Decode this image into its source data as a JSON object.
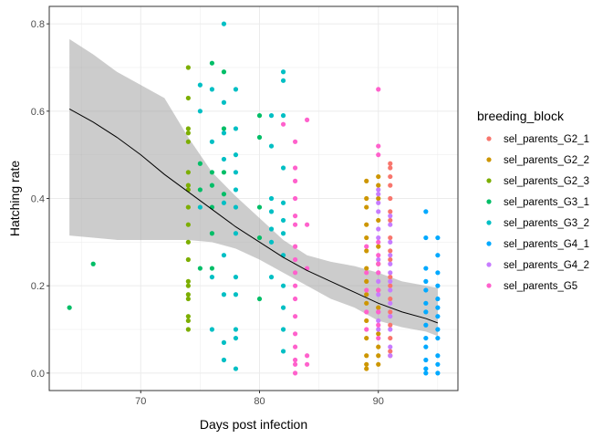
{
  "chart_data": {
    "type": "scatter",
    "xlabel": "Days post infection",
    "ylabel": "Hatching rate",
    "xlim": [
      62.3,
      96.7
    ],
    "ylim": [
      -0.04,
      0.84
    ],
    "x_ticks": [
      70,
      80,
      90
    ],
    "y_ticks": [
      0.0,
      0.2,
      0.4,
      0.6,
      0.8
    ],
    "grid": true,
    "legend_title": "breeding_block",
    "legend_position": "right",
    "series": [
      {
        "name": "sel_parents_G2_1",
        "color": "#F8766D",
        "points": [
          [
            91,
            0.48
          ],
          [
            91,
            0.47
          ],
          [
            91,
            0.45
          ],
          [
            91,
            0.43
          ],
          [
            91,
            0.4
          ],
          [
            91,
            0.37
          ],
          [
            91,
            0.35
          ],
          [
            91,
            0.31
          ],
          [
            91,
            0.28
          ],
          [
            91,
            0.26
          ],
          [
            91,
            0.22
          ],
          [
            91,
            0.2
          ],
          [
            91,
            0.17
          ],
          [
            91,
            0.14
          ],
          [
            91,
            0.11
          ],
          [
            91,
            0.08
          ],
          [
            91,
            0.05
          ],
          [
            91,
            0.04
          ]
        ]
      },
      {
        "name": "sel_parents_G2_2",
        "color": "#CD9600",
        "points": [
          [
            89,
            0.44
          ],
          [
            89,
            0.4
          ],
          [
            89,
            0.38
          ],
          [
            89,
            0.34
          ],
          [
            89,
            0.31
          ],
          [
            89,
            0.28
          ],
          [
            89,
            0.24
          ],
          [
            89,
            0.21
          ],
          [
            89,
            0.18
          ],
          [
            89,
            0.16
          ],
          [
            89,
            0.12
          ],
          [
            89,
            0.08
          ],
          [
            89,
            0.04
          ],
          [
            89,
            0.02
          ],
          [
            89,
            0.01
          ],
          [
            90,
            0.45
          ],
          [
            90,
            0.43
          ],
          [
            90,
            0.4
          ],
          [
            90,
            0.35
          ],
          [
            90,
            0.29
          ],
          [
            90,
            0.25
          ],
          [
            90,
            0.19
          ],
          [
            90,
            0.15
          ],
          [
            90,
            0.09
          ],
          [
            90,
            0.06
          ],
          [
            90,
            0.04
          ],
          [
            90,
            0.02
          ]
        ]
      },
      {
        "name": "sel_parents_G2_3",
        "color": "#7CAE00",
        "points": [
          [
            74,
            0.7
          ],
          [
            74,
            0.63
          ],
          [
            74,
            0.56
          ],
          [
            74,
            0.55
          ],
          [
            74,
            0.53
          ],
          [
            74,
            0.46
          ],
          [
            74,
            0.43
          ],
          [
            74,
            0.42
          ],
          [
            74,
            0.38
          ],
          [
            74,
            0.34
          ],
          [
            74,
            0.3
          ],
          [
            74,
            0.26
          ],
          [
            74,
            0.21
          ],
          [
            74,
            0.2
          ],
          [
            74,
            0.18
          ],
          [
            74,
            0.17
          ],
          [
            74,
            0.13
          ],
          [
            74,
            0.12
          ],
          [
            74,
            0.1
          ]
        ]
      },
      {
        "name": "sel_parents_G3_1",
        "color": "#00BE67",
        "points": [
          [
            64,
            0.15
          ],
          [
            66,
            0.25
          ],
          [
            75,
            0.48
          ],
          [
            75,
            0.42
          ],
          [
            75,
            0.24
          ],
          [
            76,
            0.71
          ],
          [
            76,
            0.46
          ],
          [
            76,
            0.43
          ],
          [
            76,
            0.38
          ],
          [
            76,
            0.32
          ],
          [
            76,
            0.24
          ],
          [
            77,
            0.69
          ],
          [
            77,
            0.56
          ],
          [
            77,
            0.46
          ],
          [
            77,
            0.41
          ],
          [
            80,
            0.59
          ],
          [
            80,
            0.54
          ],
          [
            80,
            0.38
          ],
          [
            80,
            0.31
          ],
          [
            80,
            0.17
          ]
        ]
      },
      {
        "name": "sel_parents_G3_2",
        "color": "#00BFC4",
        "points": [
          [
            75,
            0.66
          ],
          [
            75,
            0.6
          ],
          [
            75,
            0.38
          ],
          [
            76,
            0.65
          ],
          [
            76,
            0.53
          ],
          [
            76,
            0.22
          ],
          [
            76,
            0.1
          ],
          [
            77,
            0.8
          ],
          [
            77,
            0.62
          ],
          [
            77,
            0.55
          ],
          [
            77,
            0.49
          ],
          [
            77,
            0.39
          ],
          [
            77,
            0.27
          ],
          [
            77,
            0.18
          ],
          [
            77,
            0.07
          ],
          [
            77,
            0.03
          ],
          [
            78,
            0.65
          ],
          [
            78,
            0.56
          ],
          [
            78,
            0.5
          ],
          [
            78,
            0.46
          ],
          [
            78,
            0.42
          ],
          [
            78,
            0.38
          ],
          [
            78,
            0.32
          ],
          [
            78,
            0.22
          ],
          [
            78,
            0.18
          ],
          [
            78,
            0.1
          ],
          [
            78,
            0.08
          ],
          [
            78,
            0.01
          ],
          [
            81,
            0.59
          ],
          [
            81,
            0.52
          ],
          [
            81,
            0.4
          ],
          [
            81,
            0.37
          ],
          [
            81,
            0.33
          ],
          [
            81,
            0.3
          ],
          [
            81,
            0.22
          ],
          [
            82,
            0.69
          ],
          [
            82,
            0.67
          ],
          [
            82,
            0.59
          ],
          [
            82,
            0.47
          ],
          [
            82,
            0.39
          ],
          [
            82,
            0.35
          ],
          [
            82,
            0.32
          ],
          [
            82,
            0.27
          ],
          [
            82,
            0.2
          ],
          [
            82,
            0.15
          ],
          [
            82,
            0.1
          ],
          [
            82,
            0.05
          ]
        ]
      },
      {
        "name": "sel_parents_G4_1",
        "color": "#00A9FF",
        "points": [
          [
            94,
            0.37
          ],
          [
            94,
            0.31
          ],
          [
            94,
            0.24
          ],
          [
            94,
            0.21
          ],
          [
            94,
            0.19
          ],
          [
            94,
            0.16
          ],
          [
            94,
            0.14
          ],
          [
            94,
            0.11
          ],
          [
            94,
            0.08
          ],
          [
            94,
            0.06
          ],
          [
            94,
            0.03
          ],
          [
            94,
            0.01
          ],
          [
            94,
            0.0
          ],
          [
            95,
            0.31
          ],
          [
            95,
            0.27
          ],
          [
            95,
            0.23
          ],
          [
            95,
            0.2
          ],
          [
            95,
            0.17
          ],
          [
            95,
            0.15
          ],
          [
            95,
            0.13
          ],
          [
            95,
            0.1
          ],
          [
            95,
            0.08
          ],
          [
            95,
            0.04
          ],
          [
            95,
            0.02
          ],
          [
            95,
            0.0
          ]
        ]
      },
      {
        "name": "sel_parents_G4_2",
        "color": "#C77CFF",
        "points": [
          [
            90,
            0.42
          ],
          [
            90,
            0.41
          ],
          [
            90,
            0.39
          ],
          [
            90,
            0.37
          ],
          [
            90,
            0.33
          ],
          [
            90,
            0.31
          ],
          [
            90,
            0.26
          ],
          [
            90,
            0.23
          ],
          [
            90,
            0.21
          ],
          [
            90,
            0.18
          ],
          [
            90,
            0.14
          ],
          [
            90,
            0.12
          ],
          [
            90,
            0.1
          ],
          [
            91,
            0.36
          ],
          [
            91,
            0.34
          ],
          [
            91,
            0.3
          ],
          [
            91,
            0.27
          ],
          [
            91,
            0.25
          ],
          [
            91,
            0.23
          ],
          [
            91,
            0.21
          ],
          [
            91,
            0.19
          ],
          [
            91,
            0.16
          ],
          [
            91,
            0.13
          ],
          [
            91,
            0.1
          ],
          [
            91,
            0.06
          ],
          [
            91,
            0.04
          ]
        ]
      },
      {
        "name": "sel_parents_G5",
        "color": "#FF61CC",
        "points": [
          [
            82,
            0.57
          ],
          [
            83,
            0.53
          ],
          [
            83,
            0.47
          ],
          [
            83,
            0.44
          ],
          [
            83,
            0.4
          ],
          [
            83,
            0.36
          ],
          [
            83,
            0.34
          ],
          [
            83,
            0.29
          ],
          [
            83,
            0.26
          ],
          [
            83,
            0.23
          ],
          [
            83,
            0.2
          ],
          [
            83,
            0.17
          ],
          [
            83,
            0.13
          ],
          [
            83,
            0.09
          ],
          [
            83,
            0.06
          ],
          [
            83,
            0.03
          ],
          [
            83,
            0.02
          ],
          [
            83,
            0.0
          ],
          [
            84,
            0.58
          ],
          [
            84,
            0.34
          ],
          [
            84,
            0.24
          ],
          [
            84,
            0.04
          ],
          [
            84,
            0.02
          ],
          [
            89,
            0.29
          ],
          [
            89,
            0.23
          ],
          [
            89,
            0.19
          ],
          [
            89,
            0.14
          ],
          [
            89,
            0.1
          ],
          [
            90,
            0.65
          ],
          [
            90,
            0.52
          ],
          [
            90,
            0.5
          ],
          [
            90,
            0.3
          ],
          [
            90,
            0.27
          ],
          [
            90,
            0.25
          ],
          [
            90,
            0.23
          ],
          [
            90,
            0.19
          ],
          [
            90,
            0.14
          ],
          [
            90,
            0.11
          ],
          [
            90,
            0.08
          ]
        ]
      }
    ],
    "smooth": {
      "x": [
        64,
        66,
        68,
        70,
        72,
        74,
        76,
        78,
        80,
        82,
        84,
        86,
        88,
        90,
        92,
        94,
        95
      ],
      "y": [
        0.605,
        0.575,
        0.54,
        0.5,
        0.455,
        0.415,
        0.375,
        0.335,
        0.3,
        0.265,
        0.235,
        0.21,
        0.185,
        0.16,
        0.14,
        0.125,
        0.115
      ],
      "lower": [
        0.315,
        0.31,
        0.305,
        0.305,
        0.305,
        0.305,
        0.3,
        0.285,
        0.26,
        0.23,
        0.2,
        0.17,
        0.15,
        0.12,
        0.105,
        0.095,
        0.085
      ],
      "upper": [
        0.765,
        0.73,
        0.69,
        0.66,
        0.63,
        0.54,
        0.46,
        0.405,
        0.355,
        0.305,
        0.27,
        0.255,
        0.245,
        0.23,
        0.21,
        0.2,
        0.195
      ]
    }
  }
}
